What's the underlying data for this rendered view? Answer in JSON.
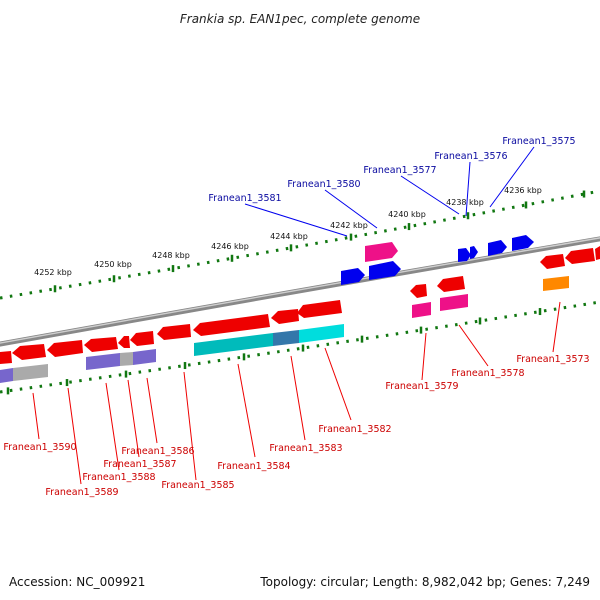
{
  "title": "Frankia sp. EAN1pec, complete genome",
  "footer": {
    "accession": "Accession: NC_009921",
    "stats": "Topology: circular; Length: 8,982,042 bp; Genes: 7,249"
  },
  "ticks": [
    "4236 kbp",
    "4238 kbp",
    "4240 kbp",
    "4242 kbp",
    "4244 kbp",
    "4246 kbp",
    "4248 kbp",
    "4250 kbp",
    "4252 kbp"
  ],
  "genes_top": [
    "Franean1_3575",
    "Franean1_3576",
    "Franean1_3577",
    "Franean1_3580",
    "Franean1_3581"
  ],
  "genes_bottom": [
    "Franean1_3573",
    "Franean1_3578",
    "Franean1_3579",
    "Franean1_3582",
    "Franean1_3583",
    "Franean1_3584",
    "Franean1_3585",
    "Franean1_3586",
    "Franean1_3587",
    "Franean1_3588",
    "Franean1_3589",
    "Franean1_3590"
  ],
  "colors": {
    "forward": "#0000ee",
    "reverse": "#ff0000",
    "magenta": "#ee1188",
    "cyan": "#00cccc",
    "purple": "#7766cc",
    "gray": "#aaaaaa",
    "orange": "#ff8800",
    "tick": "#117711",
    "backbone": "#888888"
  }
}
